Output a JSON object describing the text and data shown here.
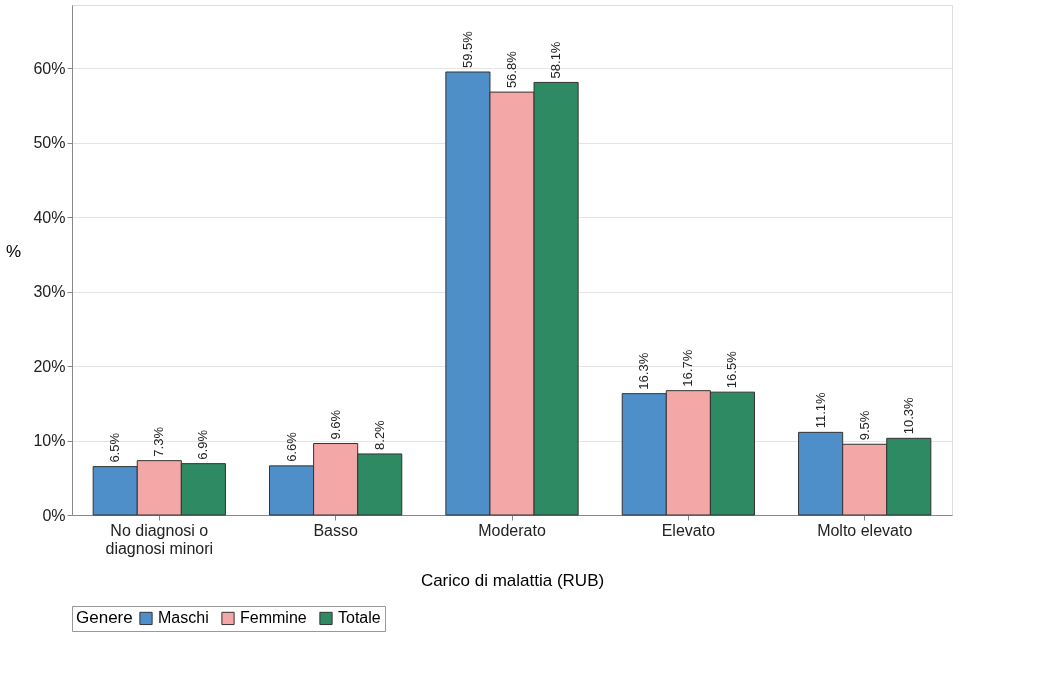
{
  "chart_data": {
    "type": "bar",
    "xlabel": "Carico di malattia (RUB)",
    "ylabel": "%",
    "legend_title": "Genere",
    "categories": [
      "No diagnosi o diagnosi minori",
      "Basso",
      "Moderato",
      "Elevato",
      "Molto elevato"
    ],
    "series": [
      {
        "name": "Maschi",
        "color": "#4f8fc9",
        "values": [
          6.5,
          6.6,
          59.5,
          16.3,
          11.1
        ],
        "value_labels": [
          "6.5%",
          "6.6%",
          "59.5%",
          "16.3%",
          "11.1%"
        ]
      },
      {
        "name": "Femmine",
        "color": "#f4a7a7",
        "values": [
          7.3,
          9.6,
          56.8,
          16.7,
          9.5
        ],
        "value_labels": [
          "7.3%",
          "9.6%",
          "56.8%",
          "16.7%",
          "9.5%"
        ]
      },
      {
        "name": "Totale",
        "color": "#2e8a62",
        "values": [
          6.9,
          8.2,
          58.1,
          16.5,
          10.3
        ],
        "value_labels": [
          "6.9%",
          "8.2%",
          "58.1%",
          "16.5%",
          "10.3%"
        ]
      }
    ],
    "ylim": [
      0,
      68.5
    ],
    "yticks": [
      {
        "value": 0,
        "label": "0%"
      },
      {
        "value": 10,
        "label": "10%"
      },
      {
        "value": 20,
        "label": "20%"
      },
      {
        "value": 30,
        "label": "30%"
      },
      {
        "value": 40,
        "label": "40%"
      },
      {
        "value": 50,
        "label": "50%"
      },
      {
        "value": 60,
        "label": "60%"
      }
    ],
    "grid": "y",
    "legend": "bottom"
  }
}
